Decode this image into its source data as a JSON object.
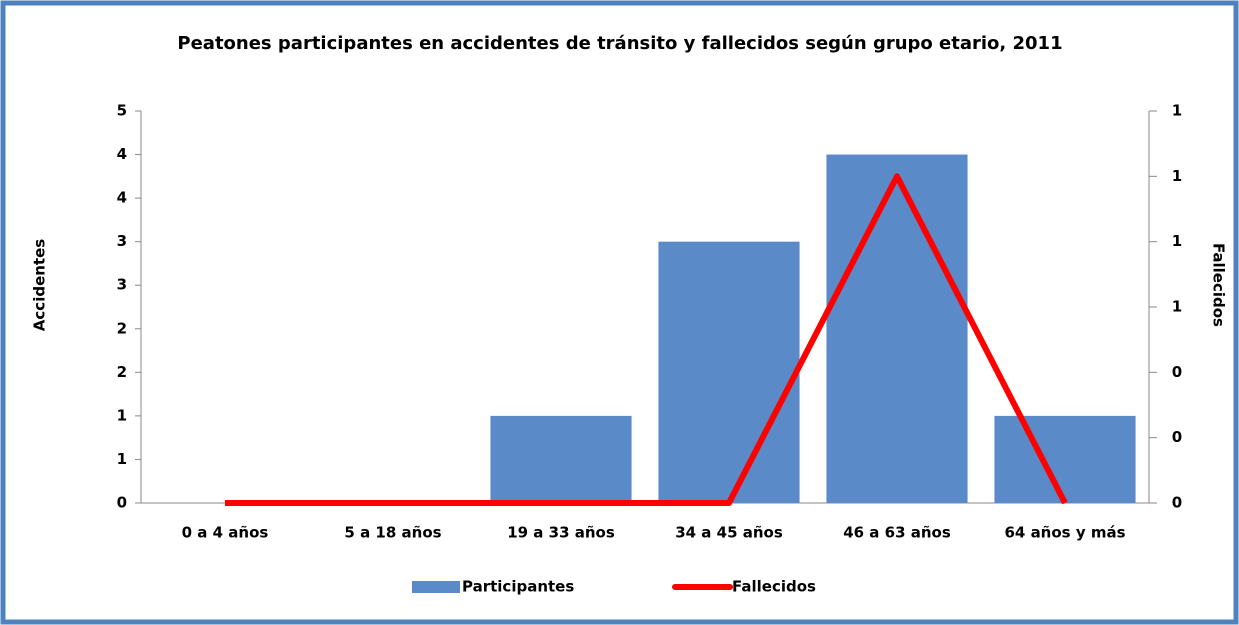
{
  "chart_data": {
    "type": "bar-line",
    "title": "Peatones participantes en accidentes de tránsito y fallecidos según grupo etario, 2011",
    "y_label": "Accidentes",
    "y2_label": "Fallecidos",
    "categories": [
      "0 a 4 años",
      "5 a 18 años",
      "19 a 33 años",
      "34 a 45 años",
      "46 a 63 años",
      "64 años y más"
    ],
    "series": [
      {
        "name": "Participantes",
        "type": "bar",
        "color": "#5b8ac9",
        "values": [
          0,
          0,
          1,
          3,
          4,
          1
        ]
      },
      {
        "name": "Fallecidos",
        "type": "line",
        "color": "#ff0000",
        "axis": "y2",
        "values": [
          0,
          0,
          0,
          0,
          1,
          0
        ]
      }
    ],
    "ylim": [
      0,
      4.5
    ],
    "yticks": [
      0,
      {
        "value": 0.5,
        "label": "1"
      },
      1,
      {
        "value": 1.5,
        "label": "2"
      },
      2,
      {
        "value": 2.5,
        "label": "3"
      },
      3,
      {
        "value": 3.5,
        "label": "4"
      },
      4,
      {
        "value": 4.5,
        "label": "5"
      }
    ],
    "y2lim": [
      0,
      1.2
    ],
    "y2ticks": [
      0,
      {
        "value": 0.2,
        "label": "0"
      },
      {
        "value": 0.4,
        "label": "0"
      },
      {
        "value": 0.6,
        "label": "1"
      },
      {
        "value": 0.8,
        "label": "1"
      },
      1,
      {
        "value": 1.2,
        "label": "1"
      }
    ],
    "legend": "bottom"
  }
}
